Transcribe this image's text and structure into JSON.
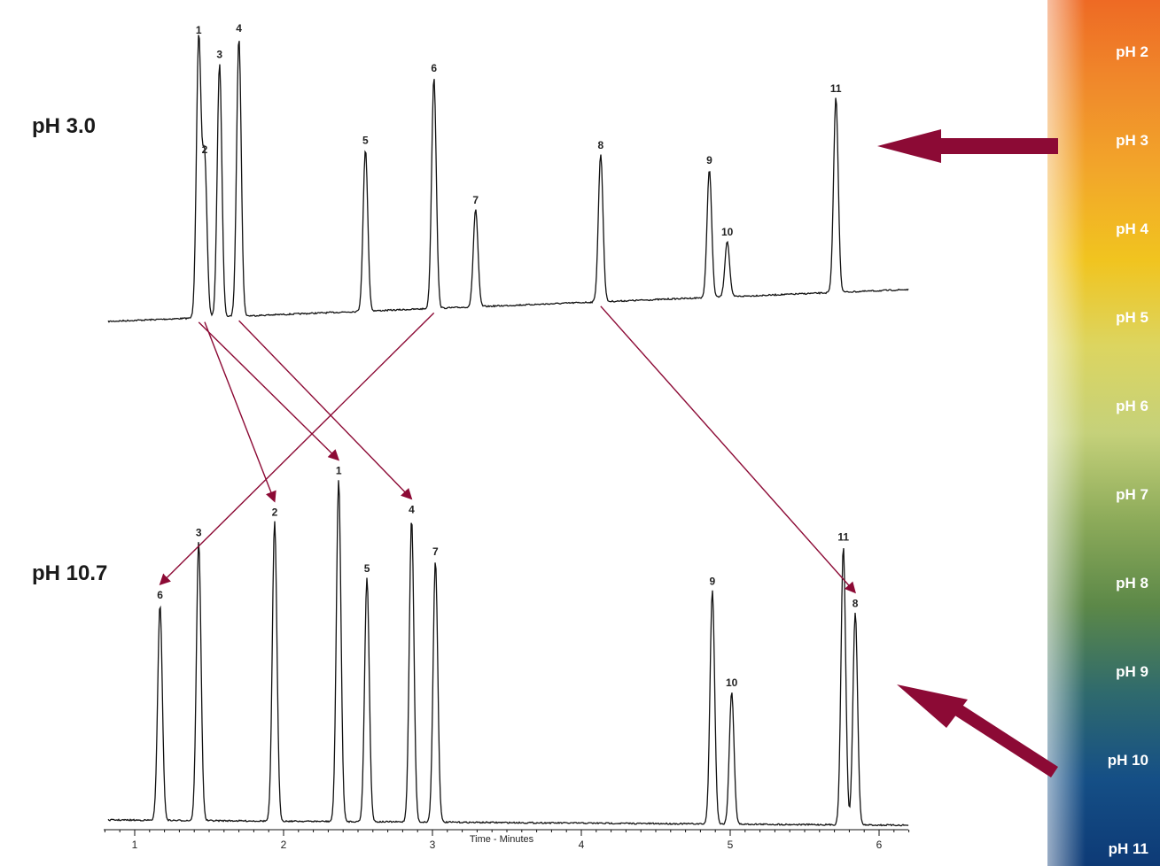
{
  "chart_data": {
    "type": "line",
    "xlabel": "Time - Minutes",
    "x_ticks": [
      1,
      2,
      3,
      4,
      5,
      6
    ],
    "xlim": [
      0.8,
      6.2
    ],
    "ylim": [
      0,
      1
    ],
    "grid": false,
    "series": [
      {
        "name": "pH 3.0",
        "peaks": [
          {
            "label": "1",
            "time": 1.43,
            "height": 1.0
          },
          {
            "label": "2",
            "time": 1.47,
            "height": 0.57
          },
          {
            "label": "3",
            "time": 1.57,
            "height": 0.91
          },
          {
            "label": "4",
            "time": 1.7,
            "height": 1.0
          },
          {
            "label": "5",
            "time": 2.55,
            "height": 0.58
          },
          {
            "label": "6",
            "time": 3.01,
            "height": 0.83
          },
          {
            "label": "7",
            "time": 3.29,
            "height": 0.35
          },
          {
            "label": "8",
            "time": 4.13,
            "height": 0.53
          },
          {
            "label": "9",
            "time": 4.86,
            "height": 0.46
          },
          {
            "label": "10",
            "time": 4.98,
            "height": 0.2
          },
          {
            "label": "11",
            "time": 5.71,
            "height": 0.7
          }
        ]
      },
      {
        "name": "pH 10.7",
        "peaks": [
          {
            "label": "6",
            "time": 1.17,
            "height": 0.62
          },
          {
            "label": "3",
            "time": 1.43,
            "height": 0.8
          },
          {
            "label": "2",
            "time": 1.94,
            "height": 0.86
          },
          {
            "label": "1",
            "time": 2.37,
            "height": 0.98
          },
          {
            "label": "5",
            "time": 2.56,
            "height": 0.7
          },
          {
            "label": "4",
            "time": 2.86,
            "height": 0.87
          },
          {
            "label": "7",
            "time": 3.02,
            "height": 0.75
          },
          {
            "label": "9",
            "time": 4.88,
            "height": 0.67
          },
          {
            "label": "10",
            "time": 5.01,
            "height": 0.38
          },
          {
            "label": "11",
            "time": 5.76,
            "height": 0.8
          },
          {
            "label": "8",
            "time": 5.84,
            "height": 0.61
          }
        ]
      }
    ],
    "annotations": [
      {
        "type": "arrow",
        "from_series": "pH 3.0",
        "to_series": "pH 10.7",
        "peak": "1"
      },
      {
        "type": "arrow",
        "from_series": "pH 3.0",
        "to_series": "pH 10.7",
        "peak": "2"
      },
      {
        "type": "arrow",
        "from_series": "pH 3.0",
        "to_series": "pH 10.7",
        "peak": "4"
      },
      {
        "type": "arrow",
        "from_series": "pH 3.0",
        "to_series": "pH 10.7",
        "peak": "6"
      },
      {
        "type": "arrow",
        "from_series": "pH 3.0",
        "to_series": "pH 10.7",
        "peak": "8"
      }
    ],
    "ph_scale": [
      "pH 2",
      "pH 3",
      "pH 4",
      "pH 5",
      "pH 6",
      "pH 7",
      "pH 8",
      "pH 9",
      "pH 10",
      "pH 11"
    ]
  },
  "colors": {
    "trace": "#111111",
    "arrow": "#8c0a35",
    "scale_gradient": [
      "#ee6a24",
      "#f08a2b",
      "#f2a72a",
      "#f1c41f",
      "#dcd560",
      "#c5d17a",
      "#8dab5a",
      "#5c8848",
      "#2f6a6d",
      "#154f86",
      "#0d3a76"
    ],
    "scale_label_muted": "#b5b59a"
  }
}
